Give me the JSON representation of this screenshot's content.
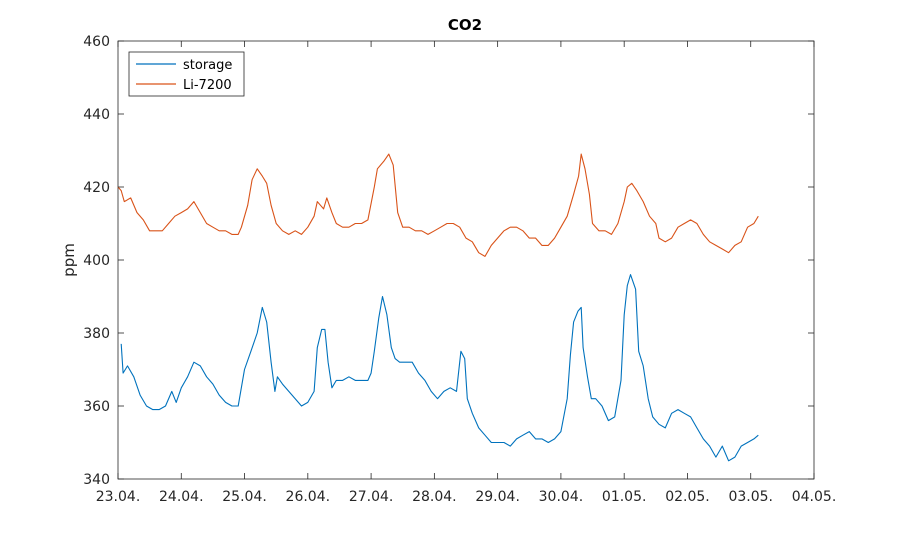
{
  "chart_data": {
    "type": "line",
    "title": "CO2",
    "xlabel": "",
    "ylabel": "ppm",
    "xlim": [
      0,
      11
    ],
    "ylim": [
      340,
      460
    ],
    "x_ticks": [
      0,
      1,
      2,
      3,
      4,
      5,
      6,
      7,
      8,
      9,
      10,
      11
    ],
    "x_tick_labels": [
      "23.04.",
      "24.04.",
      "25.04.",
      "26.04.",
      "27.04.",
      "28.04.",
      "29.04.",
      "30.04.",
      "01.05.",
      "02.05.",
      "03.05.",
      "04.05."
    ],
    "y_ticks": [
      340,
      360,
      380,
      400,
      420,
      440,
      460
    ],
    "y_tick_labels": [
      "340",
      "360",
      "380",
      "400",
      "420",
      "440",
      "460"
    ],
    "grid": false,
    "legend_position": "top-left",
    "series": [
      {
        "name": "storage",
        "color": "#0072BD",
        "points": [
          [
            0.05,
            377
          ],
          [
            0.08,
            369
          ],
          [
            0.15,
            371
          ],
          [
            0.25,
            368
          ],
          [
            0.35,
            363
          ],
          [
            0.45,
            360
          ],
          [
            0.55,
            359
          ],
          [
            0.65,
            359
          ],
          [
            0.75,
            360
          ],
          [
            0.85,
            364
          ],
          [
            0.92,
            361
          ],
          [
            1.0,
            365
          ],
          [
            1.1,
            368
          ],
          [
            1.2,
            372
          ],
          [
            1.3,
            371
          ],
          [
            1.4,
            368
          ],
          [
            1.5,
            366
          ],
          [
            1.6,
            363
          ],
          [
            1.7,
            361
          ],
          [
            1.8,
            360
          ],
          [
            1.9,
            360
          ],
          [
            2.0,
            370
          ],
          [
            2.1,
            375
          ],
          [
            2.2,
            380
          ],
          [
            2.28,
            387
          ],
          [
            2.35,
            383
          ],
          [
            2.42,
            372
          ],
          [
            2.48,
            364
          ],
          [
            2.52,
            368
          ],
          [
            2.6,
            366
          ],
          [
            2.7,
            364
          ],
          [
            2.8,
            362
          ],
          [
            2.9,
            360
          ],
          [
            3.0,
            361
          ],
          [
            3.1,
            364
          ],
          [
            3.15,
            376
          ],
          [
            3.22,
            381
          ],
          [
            3.27,
            381
          ],
          [
            3.32,
            372
          ],
          [
            3.38,
            365
          ],
          [
            3.45,
            367
          ],
          [
            3.55,
            367
          ],
          [
            3.65,
            368
          ],
          [
            3.75,
            367
          ],
          [
            3.85,
            367
          ],
          [
            3.95,
            367
          ],
          [
            4.0,
            369
          ],
          [
            4.05,
            375
          ],
          [
            4.12,
            384
          ],
          [
            4.18,
            390
          ],
          [
            4.25,
            385
          ],
          [
            4.32,
            376
          ],
          [
            4.38,
            373
          ],
          [
            4.45,
            372
          ],
          [
            4.55,
            372
          ],
          [
            4.65,
            372
          ],
          [
            4.75,
            369
          ],
          [
            4.85,
            367
          ],
          [
            4.95,
            364
          ],
          [
            5.05,
            362
          ],
          [
            5.15,
            364
          ],
          [
            5.25,
            365
          ],
          [
            5.35,
            364
          ],
          [
            5.42,
            375
          ],
          [
            5.48,
            373
          ],
          [
            5.52,
            362
          ],
          [
            5.6,
            358
          ],
          [
            5.7,
            354
          ],
          [
            5.8,
            352
          ],
          [
            5.9,
            350
          ],
          [
            6.0,
            350
          ],
          [
            6.1,
            350
          ],
          [
            6.2,
            349
          ],
          [
            6.3,
            351
          ],
          [
            6.4,
            352
          ],
          [
            6.5,
            353
          ],
          [
            6.6,
            351
          ],
          [
            6.7,
            351
          ],
          [
            6.8,
            350
          ],
          [
            6.9,
            351
          ],
          [
            7.0,
            353
          ],
          [
            7.1,
            362
          ],
          [
            7.15,
            374
          ],
          [
            7.2,
            383
          ],
          [
            7.27,
            386
          ],
          [
            7.32,
            387
          ],
          [
            7.35,
            376
          ],
          [
            7.42,
            368
          ],
          [
            7.48,
            362
          ],
          [
            7.55,
            362
          ],
          [
            7.65,
            360
          ],
          [
            7.75,
            356
          ],
          [
            7.85,
            357
          ],
          [
            7.95,
            367
          ],
          [
            8.0,
            385
          ],
          [
            8.05,
            393
          ],
          [
            8.1,
            396
          ],
          [
            8.18,
            392
          ],
          [
            8.23,
            375
          ],
          [
            8.3,
            371
          ],
          [
            8.38,
            362
          ],
          [
            8.45,
            357
          ],
          [
            8.55,
            355
          ],
          [
            8.65,
            354
          ],
          [
            8.75,
            358
          ],
          [
            8.85,
            359
          ],
          [
            8.95,
            358
          ],
          [
            9.05,
            357
          ],
          [
            9.15,
            354
          ],
          [
            9.25,
            351
          ],
          [
            9.35,
            349
          ],
          [
            9.45,
            346
          ],
          [
            9.55,
            349
          ],
          [
            9.65,
            345
          ],
          [
            9.75,
            346
          ],
          [
            9.85,
            349
          ],
          [
            9.95,
            350
          ],
          [
            10.05,
            351
          ],
          [
            10.12,
            352
          ]
        ]
      },
      {
        "name": "Li-7200",
        "color": "#D95319",
        "points": [
          [
            0.0,
            420
          ],
          [
            0.05,
            419
          ],
          [
            0.1,
            416
          ],
          [
            0.2,
            417
          ],
          [
            0.3,
            413
          ],
          [
            0.4,
            411
          ],
          [
            0.5,
            408
          ],
          [
            0.6,
            408
          ],
          [
            0.7,
            408
          ],
          [
            0.8,
            410
          ],
          [
            0.9,
            412
          ],
          [
            1.0,
            413
          ],
          [
            1.1,
            414
          ],
          [
            1.2,
            416
          ],
          [
            1.3,
            413
          ],
          [
            1.4,
            410
          ],
          [
            1.5,
            409
          ],
          [
            1.6,
            408
          ],
          [
            1.7,
            408
          ],
          [
            1.8,
            407
          ],
          [
            1.9,
            407
          ],
          [
            1.95,
            409
          ],
          [
            2.05,
            415
          ],
          [
            2.12,
            422
          ],
          [
            2.2,
            425
          ],
          [
            2.28,
            423
          ],
          [
            2.35,
            421
          ],
          [
            2.42,
            415
          ],
          [
            2.5,
            410
          ],
          [
            2.6,
            408
          ],
          [
            2.7,
            407
          ],
          [
            2.8,
            408
          ],
          [
            2.9,
            407
          ],
          [
            3.0,
            409
          ],
          [
            3.1,
            412
          ],
          [
            3.15,
            416
          ],
          [
            3.2,
            415
          ],
          [
            3.25,
            414
          ],
          [
            3.3,
            417
          ],
          [
            3.38,
            413
          ],
          [
            3.45,
            410
          ],
          [
            3.55,
            409
          ],
          [
            3.65,
            409
          ],
          [
            3.75,
            410
          ],
          [
            3.85,
            410
          ],
          [
            3.95,
            411
          ],
          [
            4.05,
            420
          ],
          [
            4.1,
            425
          ],
          [
            4.2,
            427
          ],
          [
            4.28,
            429
          ],
          [
            4.35,
            426
          ],
          [
            4.42,
            413
          ],
          [
            4.5,
            409
          ],
          [
            4.6,
            409
          ],
          [
            4.7,
            408
          ],
          [
            4.8,
            408
          ],
          [
            4.9,
            407
          ],
          [
            5.0,
            408
          ],
          [
            5.1,
            409
          ],
          [
            5.2,
            410
          ],
          [
            5.3,
            410
          ],
          [
            5.4,
            409
          ],
          [
            5.5,
            406
          ],
          [
            5.6,
            405
          ],
          [
            5.7,
            402
          ],
          [
            5.8,
            401
          ],
          [
            5.9,
            404
          ],
          [
            6.0,
            406
          ],
          [
            6.1,
            408
          ],
          [
            6.2,
            409
          ],
          [
            6.3,
            409
          ],
          [
            6.4,
            408
          ],
          [
            6.5,
            406
          ],
          [
            6.6,
            406
          ],
          [
            6.7,
            404
          ],
          [
            6.8,
            404
          ],
          [
            6.9,
            406
          ],
          [
            7.0,
            409
          ],
          [
            7.1,
            412
          ],
          [
            7.2,
            418
          ],
          [
            7.28,
            423
          ],
          [
            7.32,
            429
          ],
          [
            7.38,
            425
          ],
          [
            7.45,
            418
          ],
          [
            7.5,
            410
          ],
          [
            7.6,
            408
          ],
          [
            7.7,
            408
          ],
          [
            7.8,
            407
          ],
          [
            7.9,
            410
          ],
          [
            8.0,
            416
          ],
          [
            8.05,
            420
          ],
          [
            8.12,
            421
          ],
          [
            8.2,
            419
          ],
          [
            8.3,
            416
          ],
          [
            8.4,
            412
          ],
          [
            8.5,
            410
          ],
          [
            8.55,
            406
          ],
          [
            8.65,
            405
          ],
          [
            8.75,
            406
          ],
          [
            8.85,
            409
          ],
          [
            8.95,
            410
          ],
          [
            9.05,
            411
          ],
          [
            9.15,
            410
          ],
          [
            9.25,
            407
          ],
          [
            9.35,
            405
          ],
          [
            9.45,
            404
          ],
          [
            9.55,
            403
          ],
          [
            9.65,
            402
          ],
          [
            9.75,
            404
          ],
          [
            9.85,
            405
          ],
          [
            9.95,
            409
          ],
          [
            10.05,
            410
          ],
          [
            10.12,
            412
          ]
        ]
      }
    ]
  }
}
